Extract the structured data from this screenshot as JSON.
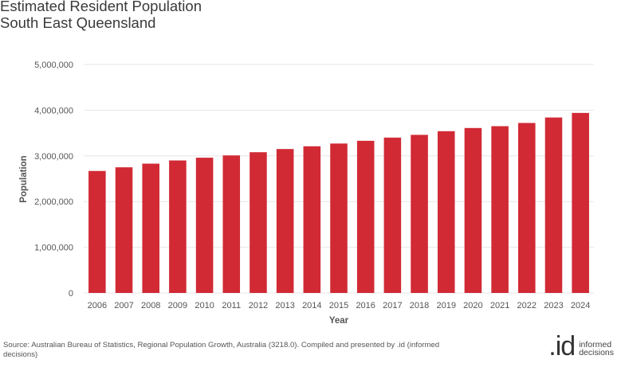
{
  "header": {
    "title_line1": "Estimated Resident Population",
    "title_line2": "South East Queensland"
  },
  "footer": {
    "source": "Source: Australian Bureau of Statistics, Regional Population Growth, Australia (3218.0). Compiled and presented by .id (informed decisions)",
    "logo_mark": ".id",
    "logo_line1": "informed",
    "logo_line2": "decisions"
  },
  "colors": {
    "bar": "#d12a35",
    "grid": "#e6e6e6",
    "axis_text": "#555555"
  },
  "chart_data": {
    "type": "bar",
    "title": "Estimated Resident Population South East Queensland",
    "xlabel": "Year",
    "ylabel": "Population",
    "ylim": [
      0,
      5000000
    ],
    "yticks": [
      0,
      1000000,
      2000000,
      3000000,
      4000000,
      5000000
    ],
    "ytick_labels": [
      "0",
      "1,000,000",
      "2,000,000",
      "3,000,000",
      "4,000,000",
      "5,000,000"
    ],
    "grid": true,
    "categories": [
      "2006",
      "2007",
      "2008",
      "2009",
      "2010",
      "2011",
      "2012",
      "2013",
      "2014",
      "2015",
      "2016",
      "2017",
      "2018",
      "2019",
      "2020",
      "2021",
      "2022",
      "2023",
      "2024"
    ],
    "values": [
      2670000,
      2750000,
      2830000,
      2900000,
      2960000,
      3010000,
      3080000,
      3150000,
      3210000,
      3270000,
      3330000,
      3400000,
      3460000,
      3540000,
      3610000,
      3650000,
      3720000,
      3840000,
      3940000
    ]
  }
}
